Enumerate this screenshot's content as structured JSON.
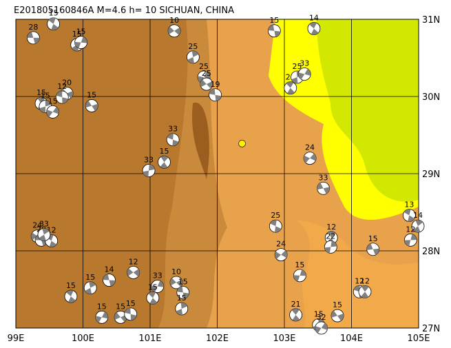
{
  "map": {
    "title": "E201805160846A M=4.6 h= 10 SICHUAN, CHINA",
    "xlim": [
      99,
      105
    ],
    "ylim": [
      27,
      31
    ],
    "xticks": [
      {
        "value": 99,
        "label": "99E"
      },
      {
        "value": 100,
        "label": "100E"
      },
      {
        "value": 101,
        "label": "101E"
      },
      {
        "value": 102,
        "label": "102E"
      },
      {
        "value": 103,
        "label": "103E"
      },
      {
        "value": 104,
        "label": "104E"
      },
      {
        "value": 105,
        "label": "105E"
      }
    ],
    "yticks": [
      {
        "value": 27,
        "label": "27N"
      },
      {
        "value": 28,
        "label": "28N"
      },
      {
        "value": 29,
        "label": "29N"
      },
      {
        "value": 30,
        "label": "30N"
      },
      {
        "value": 31,
        "label": "31N"
      }
    ],
    "epicenter": {
      "lon": 102.37,
      "lat": 29.39
    },
    "events": [
      {
        "lon": 99.26,
        "lat": 30.76,
        "depth": 28
      },
      {
        "lon": 99.56,
        "lat": 30.94,
        "depth": 15
      },
      {
        "lon": 99.91,
        "lat": 30.67,
        "depth": 15
      },
      {
        "lon": 99.97,
        "lat": 30.7,
        "depth": 15
      },
      {
        "lon": 101.36,
        "lat": 30.85,
        "depth": 10
      },
      {
        "lon": 102.85,
        "lat": 30.85,
        "depth": 15
      },
      {
        "lon": 103.44,
        "lat": 30.88,
        "depth": 14
      },
      {
        "lon": 101.64,
        "lat": 30.51,
        "depth": 25
      },
      {
        "lon": 101.8,
        "lat": 30.25,
        "depth": 25
      },
      {
        "lon": 101.84,
        "lat": 30.16,
        "depth": 25
      },
      {
        "lon": 101.97,
        "lat": 30.02,
        "depth": 19
      },
      {
        "lon": 103.09,
        "lat": 30.11,
        "depth": 21
      },
      {
        "lon": 103.19,
        "lat": 30.25,
        "depth": 25
      },
      {
        "lon": 103.3,
        "lat": 30.29,
        "depth": 33
      },
      {
        "lon": 99.76,
        "lat": 30.04,
        "depth": 20
      },
      {
        "lon": 99.69,
        "lat": 29.99,
        "depth": 12
      },
      {
        "lon": 99.38,
        "lat": 29.91,
        "depth": 15
      },
      {
        "lon": 99.44,
        "lat": 29.87,
        "depth": 15
      },
      {
        "lon": 99.55,
        "lat": 29.8,
        "depth": 15
      },
      {
        "lon": 100.13,
        "lat": 29.88,
        "depth": 15
      },
      {
        "lon": 101.34,
        "lat": 29.44,
        "depth": 33
      },
      {
        "lon": 101.21,
        "lat": 29.15,
        "depth": 15
      },
      {
        "lon": 100.98,
        "lat": 29.04,
        "depth": 33
      },
      {
        "lon": 103.38,
        "lat": 29.2,
        "depth": 24
      },
      {
        "lon": 103.58,
        "lat": 28.81,
        "depth": 33
      },
      {
        "lon": 102.87,
        "lat": 28.32,
        "depth": 25
      },
      {
        "lon": 103.7,
        "lat": 28.17,
        "depth": 12
      },
      {
        "lon": 103.69,
        "lat": 28.05,
        "depth": 22
      },
      {
        "lon": 102.95,
        "lat": 27.95,
        "depth": 24
      },
      {
        "lon": 104.32,
        "lat": 28.02,
        "depth": 15
      },
      {
        "lon": 104.86,
        "lat": 28.46,
        "depth": 13
      },
      {
        "lon": 104.99,
        "lat": 28.32,
        "depth": 14
      },
      {
        "lon": 104.88,
        "lat": 28.14,
        "depth": 12
      },
      {
        "lon": 99.32,
        "lat": 28.19,
        "depth": 24
      },
      {
        "lon": 99.38,
        "lat": 28.14,
        "depth": 20
      },
      {
        "lon": 99.53,
        "lat": 28.13,
        "depth": 12
      },
      {
        "lon": 99.42,
        "lat": 28.21,
        "depth": 33
      },
      {
        "lon": 103.23,
        "lat": 27.68,
        "depth": 15
      },
      {
        "lon": 100.75,
        "lat": 27.72,
        "depth": 12
      },
      {
        "lon": 100.39,
        "lat": 27.62,
        "depth": 14
      },
      {
        "lon": 99.82,
        "lat": 27.41,
        "depth": 15
      },
      {
        "lon": 100.11,
        "lat": 27.52,
        "depth": 15
      },
      {
        "lon": 101.11,
        "lat": 27.54,
        "depth": 33
      },
      {
        "lon": 101.39,
        "lat": 27.59,
        "depth": 10
      },
      {
        "lon": 101.49,
        "lat": 27.46,
        "depth": 15
      },
      {
        "lon": 101.04,
        "lat": 27.39,
        "depth": 15
      },
      {
        "lon": 101.47,
        "lat": 27.25,
        "depth": 15
      },
      {
        "lon": 100.28,
        "lat": 27.14,
        "depth": 15
      },
      {
        "lon": 100.56,
        "lat": 27.14,
        "depth": 15
      },
      {
        "lon": 100.71,
        "lat": 27.18,
        "depth": 15
      },
      {
        "lon": 103.17,
        "lat": 27.17,
        "depth": 21
      },
      {
        "lon": 103.51,
        "lat": 27.04,
        "depth": 15
      },
      {
        "lon": 103.55,
        "lat": 27.0,
        "depth": 32
      },
      {
        "lon": 103.79,
        "lat": 27.16,
        "depth": 15
      },
      {
        "lon": 104.12,
        "lat": 27.47,
        "depth": 12
      },
      {
        "lon": 104.2,
        "lat": 27.47,
        "depth": 12
      }
    ]
  }
}
